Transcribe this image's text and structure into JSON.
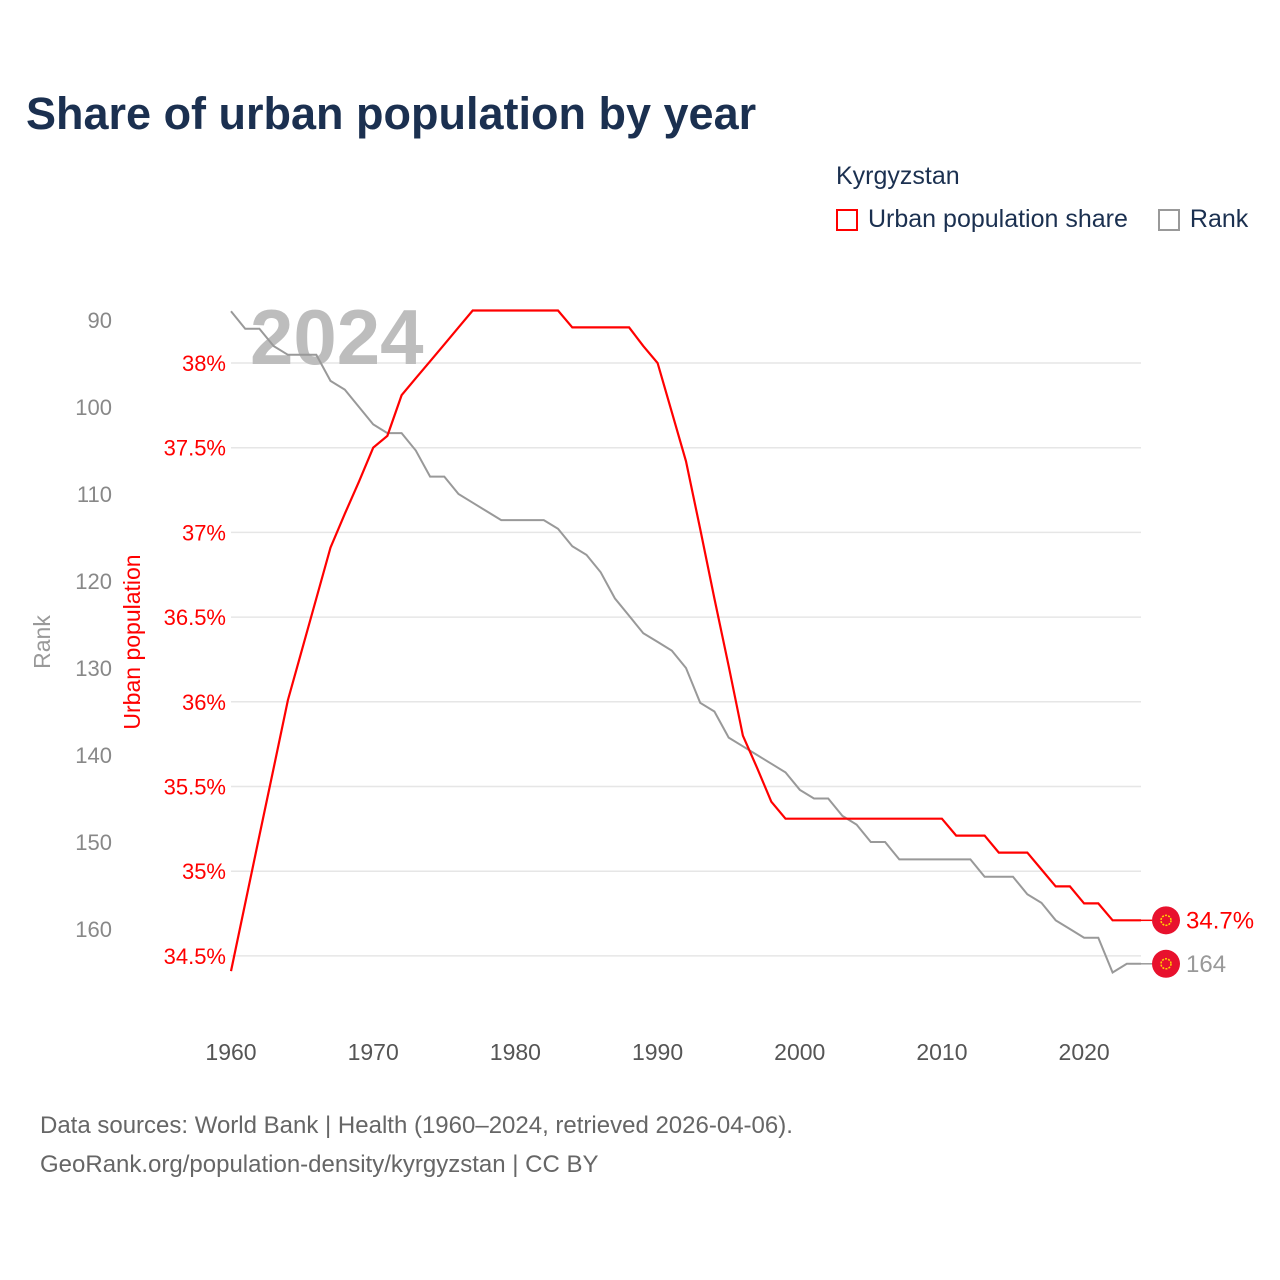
{
  "chart_data": {
    "type": "line",
    "title": "Share of urban population by year",
    "legend_title": "Kyrgyzstan",
    "legend_placement": "top-right",
    "watermark_year": "2024",
    "x": [
      1960,
      1961,
      1962,
      1963,
      1964,
      1965,
      1966,
      1967,
      1968,
      1969,
      1970,
      1971,
      1972,
      1973,
      1974,
      1975,
      1976,
      1977,
      1978,
      1979,
      1980,
      1981,
      1982,
      1983,
      1984,
      1985,
      1986,
      1987,
      1988,
      1989,
      1990,
      1991,
      1992,
      1993,
      1994,
      1995,
      1996,
      1997,
      1998,
      1999,
      2000,
      2001,
      2002,
      2003,
      2004,
      2005,
      2006,
      2007,
      2008,
      2009,
      2010,
      2011,
      2012,
      2013,
      2014,
      2015,
      2016,
      2017,
      2018,
      2019,
      2020,
      2021,
      2022,
      2023,
      2024
    ],
    "xticks": [
      1960,
      1970,
      1980,
      1990,
      2000,
      2010,
      2020
    ],
    "xlim": [
      1960,
      2024
    ],
    "series": [
      {
        "name": "Urban population share",
        "axis": "right-inner",
        "color": "#ff0000",
        "ylabel": "Urban population",
        "ylim": [
          34.41,
          38.31
        ],
        "yticks": [
          34.5,
          35,
          35.5,
          36,
          36.5,
          37,
          37.5,
          38
        ],
        "ytick_labels": [
          "34.5%",
          "35%",
          "35.5%",
          "36%",
          "36.5%",
          "37%",
          "37.5%",
          "38%"
        ],
        "end_label": "34.7%",
        "values": [
          34.41,
          34.81,
          35.21,
          35.61,
          36.01,
          36.31,
          36.61,
          36.91,
          37.11,
          37.3,
          37.5,
          37.57,
          37.81,
          37.91,
          38.01,
          38.11,
          38.21,
          38.31,
          38.31,
          38.31,
          38.31,
          38.31,
          38.31,
          38.31,
          38.21,
          38.21,
          38.21,
          38.21,
          38.21,
          38.1,
          38.0,
          37.71,
          37.42,
          37.02,
          36.61,
          36.21,
          35.8,
          35.61,
          35.41,
          35.31,
          35.31,
          35.31,
          35.31,
          35.31,
          35.31,
          35.31,
          35.31,
          35.31,
          35.31,
          35.31,
          35.31,
          35.21,
          35.21,
          35.21,
          35.11,
          35.11,
          35.11,
          35.01,
          34.91,
          34.91,
          34.81,
          34.81,
          34.71,
          34.71,
          34.71
        ]
      },
      {
        "name": "Rank",
        "axis": "left-outer",
        "color": "#999999",
        "ylabel": "Rank",
        "inverted": true,
        "yticks": [
          90,
          100,
          110,
          120,
          130,
          140,
          150,
          160
        ],
        "ytick_labels": [
          "90",
          "100",
          "110",
          "120",
          "130",
          "140",
          "150",
          "160"
        ],
        "end_label": "164",
        "values": [
          89,
          91,
          91,
          93,
          94,
          94,
          94,
          97,
          98,
          100,
          102,
          103,
          103,
          105,
          108,
          108,
          110,
          111,
          112,
          113,
          113,
          113,
          113,
          114,
          116,
          117,
          119,
          122,
          124,
          126,
          127,
          128,
          130,
          134,
          135,
          138,
          139,
          140,
          141,
          142,
          144,
          145,
          145,
          147,
          148,
          150,
          150,
          152,
          152,
          152,
          152,
          152,
          152,
          154,
          154,
          154,
          156,
          157,
          159,
          160,
          161,
          161,
          165,
          164,
          164
        ]
      }
    ],
    "flag_color": "#e8112d",
    "grid": true
  },
  "footer": {
    "line1": "Data sources: World Bank | Health (1960–2024, retrieved 2026-04-06).",
    "line2": "GeoRank.org/population-density/kyrgyzstan | CC BY"
  }
}
